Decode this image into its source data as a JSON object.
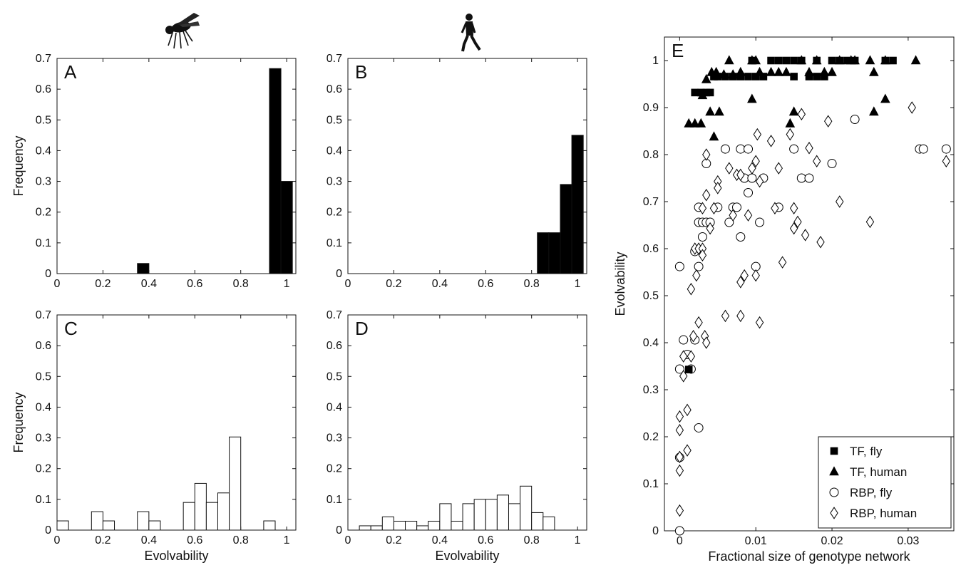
{
  "chart_data": [
    {
      "type": "bar",
      "panel_label": "A",
      "icon": "fly-silhouette-icon",
      "xlabel": "",
      "ylabel": "Frequency",
      "xlim": [
        0,
        1.04
      ],
      "ylim": [
        0,
        0.7
      ],
      "xticks": [
        "0",
        "0.2",
        "0.4",
        "0.6",
        "0.8",
        "1"
      ],
      "yticks": [
        "0",
        "0.1",
        "0.2",
        "0.3",
        "0.4",
        "0.5",
        "0.6",
        "0.7"
      ],
      "fill": "#000000",
      "bins": [
        {
          "x0": 0.35,
          "x1": 0.4,
          "value": 0.033
        },
        {
          "x0": 0.925,
          "x1": 0.975,
          "value": 0.667
        },
        {
          "x0": 0.975,
          "x1": 1.025,
          "value": 0.3
        }
      ]
    },
    {
      "type": "bar",
      "panel_label": "B",
      "icon": "walking-human-silhouette-icon",
      "xlabel": "",
      "ylabel": "",
      "xlim": [
        0,
        1.04
      ],
      "ylim": [
        0,
        0.7
      ],
      "xticks": [
        "0",
        "0.2",
        "0.4",
        "0.6",
        "0.8",
        "1"
      ],
      "yticks": [
        "0",
        "0.1",
        "0.2",
        "0.3",
        "0.4",
        "0.5",
        "0.6",
        "0.7"
      ],
      "fill": "#000000",
      "bins": [
        {
          "x0": 0.825,
          "x1": 0.875,
          "value": 0.133
        },
        {
          "x0": 0.875,
          "x1": 0.925,
          "value": 0.133
        },
        {
          "x0": 0.925,
          "x1": 0.975,
          "value": 0.29
        },
        {
          "x0": 0.975,
          "x1": 1.025,
          "value": 0.45
        }
      ]
    },
    {
      "type": "bar",
      "panel_label": "C",
      "xlabel": "Evolvability",
      "ylabel": "Frequency",
      "xlim": [
        0,
        1.04
      ],
      "ylim": [
        0,
        0.7
      ],
      "xticks": [
        "0",
        "0.2",
        "0.4",
        "0.6",
        "0.8",
        "1"
      ],
      "yticks": [
        "0",
        "0.1",
        "0.2",
        "0.3",
        "0.4",
        "0.5",
        "0.6",
        "0.7"
      ],
      "fill": "#ffffff",
      "bins": [
        {
          "x0": 0.0,
          "x1": 0.05,
          "value": 0.03
        },
        {
          "x0": 0.05,
          "x1": 0.1,
          "value": 0.0
        },
        {
          "x0": 0.1,
          "x1": 0.15,
          "value": 0.0
        },
        {
          "x0": 0.15,
          "x1": 0.2,
          "value": 0.06
        },
        {
          "x0": 0.2,
          "x1": 0.25,
          "value": 0.03
        },
        {
          "x0": 0.25,
          "x1": 0.3,
          "value": 0.0
        },
        {
          "x0": 0.3,
          "x1": 0.35,
          "value": 0.0
        },
        {
          "x0": 0.35,
          "x1": 0.4,
          "value": 0.06
        },
        {
          "x0": 0.4,
          "x1": 0.45,
          "value": 0.03
        },
        {
          "x0": 0.45,
          "x1": 0.5,
          "value": 0.0
        },
        {
          "x0": 0.5,
          "x1": 0.55,
          "value": 0.0
        },
        {
          "x0": 0.55,
          "x1": 0.6,
          "value": 0.09
        },
        {
          "x0": 0.6,
          "x1": 0.65,
          "value": 0.152
        },
        {
          "x0": 0.65,
          "x1": 0.7,
          "value": 0.09
        },
        {
          "x0": 0.7,
          "x1": 0.75,
          "value": 0.121
        },
        {
          "x0": 0.75,
          "x1": 0.8,
          "value": 0.303
        },
        {
          "x0": 0.8,
          "x1": 0.85,
          "value": 0.0
        },
        {
          "x0": 0.85,
          "x1": 0.9,
          "value": 0.0
        },
        {
          "x0": 0.9,
          "x1": 0.95,
          "value": 0.03
        }
      ]
    },
    {
      "type": "bar",
      "panel_label": "D",
      "xlabel": "Evolvability",
      "ylabel": "",
      "xlim": [
        0,
        1.04
      ],
      "ylim": [
        0,
        0.7
      ],
      "xticks": [
        "0",
        "0.2",
        "0.4",
        "0.6",
        "0.8",
        "1"
      ],
      "yticks": [
        "0",
        "0.1",
        "0.2",
        "0.3",
        "0.4",
        "0.5",
        "0.6",
        "0.7"
      ],
      "fill": "#ffffff",
      "bins": [
        {
          "x0": 0.05,
          "x1": 0.1,
          "value": 0.014
        },
        {
          "x0": 0.1,
          "x1": 0.15,
          "value": 0.014
        },
        {
          "x0": 0.15,
          "x1": 0.2,
          "value": 0.043
        },
        {
          "x0": 0.2,
          "x1": 0.25,
          "value": 0.029
        },
        {
          "x0": 0.25,
          "x1": 0.3,
          "value": 0.029
        },
        {
          "x0": 0.3,
          "x1": 0.35,
          "value": 0.014
        },
        {
          "x0": 0.35,
          "x1": 0.4,
          "value": 0.029
        },
        {
          "x0": 0.4,
          "x1": 0.45,
          "value": 0.086
        },
        {
          "x0": 0.45,
          "x1": 0.5,
          "value": 0.029
        },
        {
          "x0": 0.5,
          "x1": 0.55,
          "value": 0.086
        },
        {
          "x0": 0.55,
          "x1": 0.6,
          "value": 0.1
        },
        {
          "x0": 0.6,
          "x1": 0.65,
          "value": 0.1
        },
        {
          "x0": 0.65,
          "x1": 0.7,
          "value": 0.114
        },
        {
          "x0": 0.7,
          "x1": 0.75,
          "value": 0.086
        },
        {
          "x0": 0.75,
          "x1": 0.8,
          "value": 0.143
        },
        {
          "x0": 0.8,
          "x1": 0.85,
          "value": 0.057
        },
        {
          "x0": 0.85,
          "x1": 0.9,
          "value": 0.043
        }
      ]
    },
    {
      "type": "scatter",
      "panel_label": "E",
      "xlabel": "Fractional size of genotype network",
      "ylabel": "Evolvability",
      "xlim": [
        -0.002,
        0.036
      ],
      "ylim": [
        0,
        1.05
      ],
      "xticks": [
        0,
        0.01,
        0.02,
        0.03
      ],
      "xtick_labels": [
        "0",
        "0.01",
        "0.02",
        "0.03"
      ],
      "yticks": [
        0,
        0.1,
        0.2,
        0.3,
        0.4,
        0.5,
        0.6,
        0.7,
        0.8,
        0.9,
        1
      ],
      "ytick_labels": [
        "0",
        "0.1",
        "0.2",
        "0.3",
        "0.4",
        "0.5",
        "0.6",
        "0.7",
        "0.8",
        "0.9",
        "1"
      ],
      "legend_position": "bottom-right",
      "series": [
        {
          "name": "TF, fly",
          "marker": "square",
          "filled": true,
          "points": [
            [
              0.0012,
              0.343
            ],
            [
              0.002,
              0.932
            ],
            [
              0.0028,
              0.932
            ],
            [
              0.0035,
              0.932
            ],
            [
              0.004,
              0.932
            ],
            [
              0.0045,
              0.966
            ],
            [
              0.005,
              0.966
            ],
            [
              0.006,
              0.966
            ],
            [
              0.007,
              0.966
            ],
            [
              0.008,
              0.966
            ],
            [
              0.009,
              0.966
            ],
            [
              0.0095,
              1.0
            ],
            [
              0.01,
              0.966
            ],
            [
              0.011,
              0.966
            ],
            [
              0.012,
              1.0
            ],
            [
              0.013,
              1.0
            ],
            [
              0.014,
              1.0
            ],
            [
              0.015,
              0.966
            ],
            [
              0.015,
              1.0
            ],
            [
              0.016,
              1.0
            ],
            [
              0.017,
              0.966
            ],
            [
              0.018,
              0.966
            ],
            [
              0.018,
              1.0
            ],
            [
              0.019,
              0.966
            ],
            [
              0.02,
              1.0
            ],
            [
              0.021,
              1.0
            ],
            [
              0.022,
              1.0
            ],
            [
              0.023,
              1.0
            ],
            [
              0.027,
              1.0
            ],
            [
              0.028,
              1.0
            ]
          ]
        },
        {
          "name": "TF, human",
          "marker": "triangle",
          "filled": true,
          "points": [
            [
              0.0012,
              0.866
            ],
            [
              0.002,
              0.866
            ],
            [
              0.0028,
              0.866
            ],
            [
              0.003,
              0.926
            ],
            [
              0.0035,
              0.96
            ],
            [
              0.004,
              0.891
            ],
            [
              0.0042,
              0.975
            ],
            [
              0.0045,
              0.838
            ],
            [
              0.0048,
              0.975
            ],
            [
              0.0052,
              0.891
            ],
            [
              0.0058,
              0.97
            ],
            [
              0.0065,
              1.0
            ],
            [
              0.007,
              0.97
            ],
            [
              0.008,
              0.975
            ],
            [
              0.0095,
              0.918
            ],
            [
              0.0095,
              1.0
            ],
            [
              0.01,
              1.0
            ],
            [
              0.0105,
              0.975
            ],
            [
              0.012,
              0.975
            ],
            [
              0.013,
              0.975
            ],
            [
              0.014,
              0.975
            ],
            [
              0.0145,
              0.866
            ],
            [
              0.015,
              0.891
            ],
            [
              0.016,
              1.0
            ],
            [
              0.017,
              0.975
            ],
            [
              0.018,
              1.0
            ],
            [
              0.019,
              0.975
            ],
            [
              0.02,
              0.975
            ],
            [
              0.021,
              1.0
            ],
            [
              0.0225,
              1.0
            ],
            [
              0.023,
              1.0
            ],
            [
              0.025,
              1.0
            ],
            [
              0.0255,
              0.975
            ],
            [
              0.0255,
              0.891
            ],
            [
              0.027,
              1.0
            ],
            [
              0.027,
              0.918
            ],
            [
              0.031,
              1.0
            ]
          ]
        },
        {
          "name": "RBP, fly",
          "marker": "circle",
          "filled": false,
          "points": [
            [
              0.0,
              0.0
            ],
            [
              0.0,
              0.156
            ],
            [
              0.0,
              0.344
            ],
            [
              0.0,
              0.562
            ],
            [
              0.0005,
              0.406
            ],
            [
              0.001,
              0.375
            ],
            [
              0.0015,
              0.344
            ],
            [
              0.002,
              0.406
            ],
            [
              0.002,
              0.594
            ],
            [
              0.0025,
              0.219
            ],
            [
              0.0025,
              0.656
            ],
            [
              0.0025,
              0.688
            ],
            [
              0.0025,
              0.562
            ],
            [
              0.003,
              0.656
            ],
            [
              0.003,
              0.625
            ],
            [
              0.0035,
              0.781
            ],
            [
              0.0035,
              0.656
            ],
            [
              0.004,
              0.656
            ],
            [
              0.005,
              0.688
            ],
            [
              0.006,
              0.812
            ],
            [
              0.0065,
              0.656
            ],
            [
              0.007,
              0.688
            ],
            [
              0.0075,
              0.688
            ],
            [
              0.008,
              0.625
            ],
            [
              0.008,
              0.812
            ],
            [
              0.0085,
              0.75
            ],
            [
              0.009,
              0.719
            ],
            [
              0.009,
              0.812
            ],
            [
              0.0095,
              0.75
            ],
            [
              0.01,
              0.562
            ],
            [
              0.0105,
              0.656
            ],
            [
              0.011,
              0.75
            ],
            [
              0.013,
              0.688
            ],
            [
              0.015,
              0.812
            ],
            [
              0.016,
              0.75
            ],
            [
              0.017,
              0.75
            ],
            [
              0.02,
              0.781
            ],
            [
              0.023,
              0.875
            ],
            [
              0.0315,
              0.812
            ],
            [
              0.032,
              0.812
            ],
            [
              0.035,
              0.812
            ]
          ]
        },
        {
          "name": "RBP, human",
          "marker": "diamond",
          "filled": false,
          "points": [
            [
              0.0,
              0.043
            ],
            [
              0.0,
              0.128
            ],
            [
              0.0,
              0.157
            ],
            [
              0.0,
              0.214
            ],
            [
              0.0,
              0.243
            ],
            [
              0.0005,
              0.371
            ],
            [
              0.0005,
              0.329
            ],
            [
              0.001,
              0.257
            ],
            [
              0.001,
              0.171
            ],
            [
              0.0015,
              0.371
            ],
            [
              0.0015,
              0.514
            ],
            [
              0.0018,
              0.414
            ],
            [
              0.002,
              0.6
            ],
            [
              0.0022,
              0.543
            ],
            [
              0.0025,
              0.443
            ],
            [
              0.0025,
              0.6
            ],
            [
              0.003,
              0.686
            ],
            [
              0.003,
              0.6
            ],
            [
              0.003,
              0.586
            ],
            [
              0.0033,
              0.414
            ],
            [
              0.0035,
              0.4
            ],
            [
              0.0035,
              0.8
            ],
            [
              0.0035,
              0.714
            ],
            [
              0.004,
              0.643
            ],
            [
              0.0045,
              0.686
            ],
            [
              0.005,
              0.743
            ],
            [
              0.005,
              0.729
            ],
            [
              0.006,
              0.457
            ],
            [
              0.0065,
              0.771
            ],
            [
              0.007,
              0.671
            ],
            [
              0.0075,
              0.757
            ],
            [
              0.008,
              0.457
            ],
            [
              0.008,
              0.529
            ],
            [
              0.008,
              0.757
            ],
            [
              0.0085,
              0.543
            ],
            [
              0.009,
              0.671
            ],
            [
              0.0095,
              0.771
            ],
            [
              0.01,
              0.543
            ],
            [
              0.01,
              0.786
            ],
            [
              0.0102,
              0.843
            ],
            [
              0.0105,
              0.443
            ],
            [
              0.0105,
              0.743
            ],
            [
              0.012,
              0.829
            ],
            [
              0.0125,
              0.686
            ],
            [
              0.013,
              0.771
            ],
            [
              0.0135,
              0.571
            ],
            [
              0.0145,
              0.843
            ],
            [
              0.015,
              0.643
            ],
            [
              0.015,
              0.686
            ],
            [
              0.0155,
              0.657
            ],
            [
              0.016,
              0.886
            ],
            [
              0.0165,
              0.629
            ],
            [
              0.017,
              0.814
            ],
            [
              0.018,
              0.786
            ],
            [
              0.0185,
              0.614
            ],
            [
              0.0195,
              0.871
            ],
            [
              0.021,
              0.7
            ],
            [
              0.025,
              0.657
            ],
            [
              0.0305,
              0.9
            ],
            [
              0.035,
              0.786
            ]
          ]
        }
      ]
    }
  ]
}
